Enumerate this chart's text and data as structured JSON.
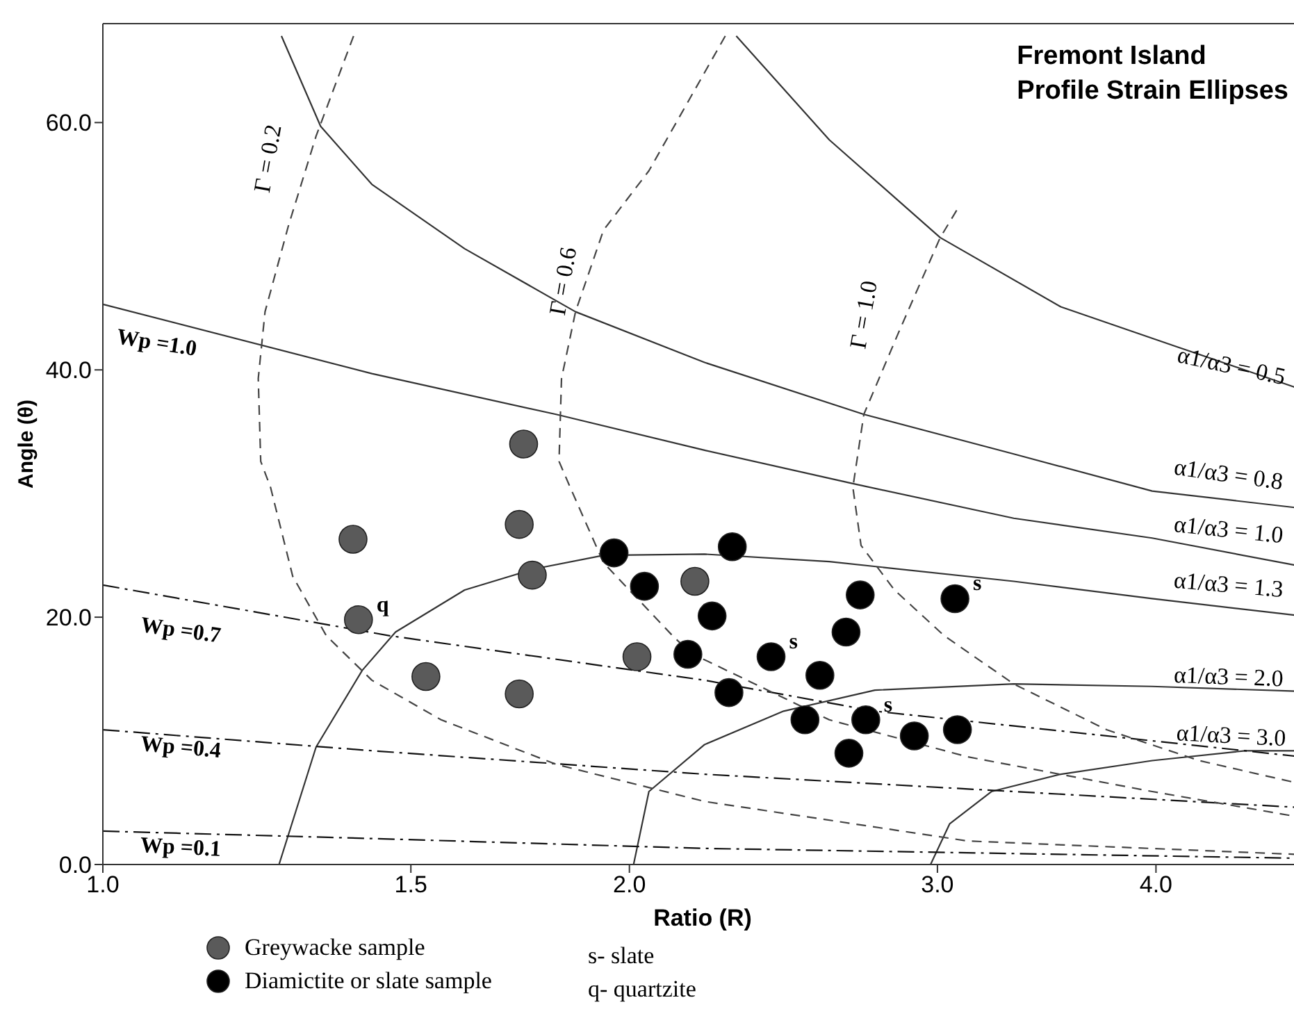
{
  "chart_data": {
    "type": "scatter",
    "title": "Fremont Island",
    "subtitle": "Profile Strain Ellipses",
    "xlabel": "Ratio (R)",
    "ylabel": "Angle (θ)",
    "log": "x",
    "xlim": [
      1,
      4.85
    ],
    "xticks": [
      {
        "value": 1,
        "label": "1.0"
      },
      {
        "value": 1.5,
        "label": "1.5"
      },
      {
        "value": 2,
        "label": "2.0"
      },
      {
        "value": 3,
        "label": "3.0"
      },
      {
        "value": 4,
        "label": "4.0"
      }
    ],
    "ylim": [
      0,
      68
    ],
    "yticks": [
      {
        "value": 0,
        "label": "0.0"
      },
      {
        "value": 20,
        "label": "20.0"
      },
      {
        "value": 40,
        "label": "40.0"
      },
      {
        "value": 60,
        "label": "60.0"
      }
    ],
    "legend": "bottom",
    "series": [
      {
        "type": "line",
        "name": "α1/α3 = 0.5",
        "color": "#333333",
        "line_style": "solid",
        "marker": "none",
        "x": [
          2.302,
          2.602,
          3.011,
          3.529,
          4.106,
          4.848
        ],
        "values": [
          67.0,
          58.6,
          50.7,
          45.1,
          41.9,
          38.4
        ]
      },
      {
        "type": "line",
        "name": "α1/α3 = 0.8",
        "color": "#333333",
        "line_style": "solid",
        "marker": "none",
        "x": [
          1.265,
          1.332,
          1.425,
          1.61,
          1.863,
          2.208,
          2.723,
          3.317,
          3.98,
          4.848
        ],
        "values": [
          67.0,
          59.7,
          55.0,
          49.8,
          44.7,
          40.6,
          36.4,
          33.2,
          30.2,
          28.8
        ]
      },
      {
        "type": "line",
        "name": "α1/α3 = 1.0",
        "color": "#333333",
        "line_style": "solid",
        "marker": "none",
        "x": [
          1.0,
          1.425,
          1.816,
          2.208,
          2.684,
          3.317,
          3.98,
          4.848
        ],
        "values": [
          45.3,
          39.7,
          36.4,
          33.5,
          30.8,
          28.0,
          26.4,
          24.1
        ]
      },
      {
        "type": "line",
        "name": "α1/α3 = 1.3",
        "color": "#333333",
        "line_style": "solid",
        "marker": "none",
        "x": [
          1.261,
          1.324,
          1.407,
          1.47,
          1.61,
          1.764,
          1.933,
          2.208,
          2.602,
          3.317,
          3.98,
          4.848
        ],
        "values": [
          0,
          9.5,
          15.7,
          18.8,
          22.2,
          23.9,
          25.0,
          25.1,
          24.5,
          22.9,
          21.5,
          20.1
        ]
      },
      {
        "type": "line",
        "name": "α1/α3 = 2.0",
        "color": "#333333",
        "line_style": "solid",
        "marker": "none",
        "x": [
          2.011,
          2.052,
          2.208,
          2.45,
          2.763,
          3.317,
          3.98,
          4.848
        ],
        "values": [
          0,
          5.9,
          9.7,
          12.4,
          14.1,
          14.6,
          14.4,
          14.0
        ]
      },
      {
        "type": "line",
        "name": "α1/α3 = 3.0",
        "color": "#333333",
        "line_style": "solid",
        "marker": "none",
        "x": [
          2.973,
          3.049,
          3.221,
          3.529,
          3.98,
          4.498,
          4.848
        ],
        "values": [
          0,
          3.3,
          5.9,
          7.3,
          8.4,
          9.2,
          9.2
        ]
      },
      {
        "type": "line",
        "name": "Wp =0.7",
        "color": "#111111",
        "line_style": "dashdot",
        "marker": "none",
        "x": [
          1.0,
          1.459,
          2.208,
          2.763,
          3.529,
          4.848
        ],
        "values": [
          22.6,
          18.5,
          14.9,
          12.4,
          10.8,
          8.7
        ]
      },
      {
        "type": "line",
        "name": "Wp =0.4",
        "color": "#111111",
        "line_style": "dashdot",
        "marker": "none",
        "x": [
          1.0,
          1.425,
          2.208,
          3.317,
          4.848
        ],
        "values": [
          10.9,
          9.2,
          7.3,
          5.9,
          4.6
        ]
      },
      {
        "type": "line",
        "name": "Wp =0.1",
        "color": "#111111",
        "line_style": "dashdot",
        "marker": "none",
        "x": [
          1.0,
          1.425,
          2.208,
          4.848
        ],
        "values": [
          2.7,
          2.1,
          1.3,
          0.5
        ]
      },
      {
        "type": "line",
        "name": "Γ = 0.2",
        "color": "#444444",
        "line_style": "dashed",
        "marker": "none",
        "x": [
          1.391,
          1.324,
          1.277,
          1.238,
          1.227,
          1.231,
          1.247,
          1.284,
          1.342,
          1.425,
          1.561,
          1.816,
          2.208,
          3.123,
          4.848
        ],
        "values": [
          67.0,
          58.9,
          51.7,
          44.7,
          39.3,
          32.6,
          30.5,
          23.3,
          18.5,
          14.9,
          11.7,
          8.1,
          5.1,
          1.9,
          0.8
        ]
      },
      {
        "type": "line",
        "name": "Γ = 0.6",
        "color": "#444444",
        "line_style": "dashed",
        "marker": "none",
        "x": [
          2.269,
          2.052,
          1.933,
          1.863,
          1.829,
          1.823,
          1.85,
          1.933,
          2.117,
          2.168,
          2.602,
          3.123,
          3.98,
          4.848
        ],
        "values": [
          67.0,
          56.1,
          51.3,
          44.7,
          39.3,
          32.6,
          30.5,
          24.4,
          18.5,
          17.1,
          11.7,
          8.7,
          5.9,
          3.8
        ]
      },
      {
        "type": "line",
        "name": "Γ = 1.0",
        "color": "#444444",
        "line_style": "dashed",
        "marker": "none",
        "x": [
          3.077,
          3.011,
          2.85,
          2.723,
          2.684,
          2.713,
          2.835,
          3.027,
          3.317,
          3.748,
          4.235,
          4.848
        ],
        "values": [
          52.9,
          50.7,
          43.0,
          36.4,
          30.5,
          25.8,
          22.2,
          18.5,
          14.6,
          10.9,
          8.4,
          6.5
        ]
      },
      {
        "name": "Greywacke sample",
        "color": "#5a5a5a",
        "marker": "circle",
        "x": [
          1.74,
          1.39,
          1.73,
          1.76,
          1.4,
          1.53,
          1.73,
          2.02,
          2.18
        ],
        "values": [
          34.0,
          26.3,
          27.5,
          23.4,
          19.8,
          15.2,
          13.8,
          16.8,
          22.9
        ],
        "value_labels": [
          null,
          null,
          null,
          null,
          "q",
          null,
          null,
          null,
          null
        ]
      },
      {
        "name": "Diamictite or slate sample",
        "color": "#000000",
        "marker": "circle",
        "x": [
          1.96,
          2.04,
          2.16,
          2.29,
          2.23,
          2.28,
          2.41,
          2.57,
          2.52,
          2.67,
          2.73,
          2.91,
          3.08,
          2.66,
          2.71,
          3.07
        ],
        "values": [
          25.2,
          22.5,
          17.0,
          25.7,
          20.1,
          13.9,
          16.8,
          15.3,
          11.7,
          9.0,
          11.7,
          10.4,
          10.9,
          18.8,
          21.8,
          21.5
        ],
        "value_labels": [
          null,
          null,
          null,
          null,
          null,
          null,
          "s",
          null,
          null,
          null,
          "s",
          null,
          null,
          null,
          null,
          "s"
        ]
      }
    ],
    "annotations": [
      "Wp =1.0",
      "s- slate",
      "q- quartzite"
    ]
  }
}
